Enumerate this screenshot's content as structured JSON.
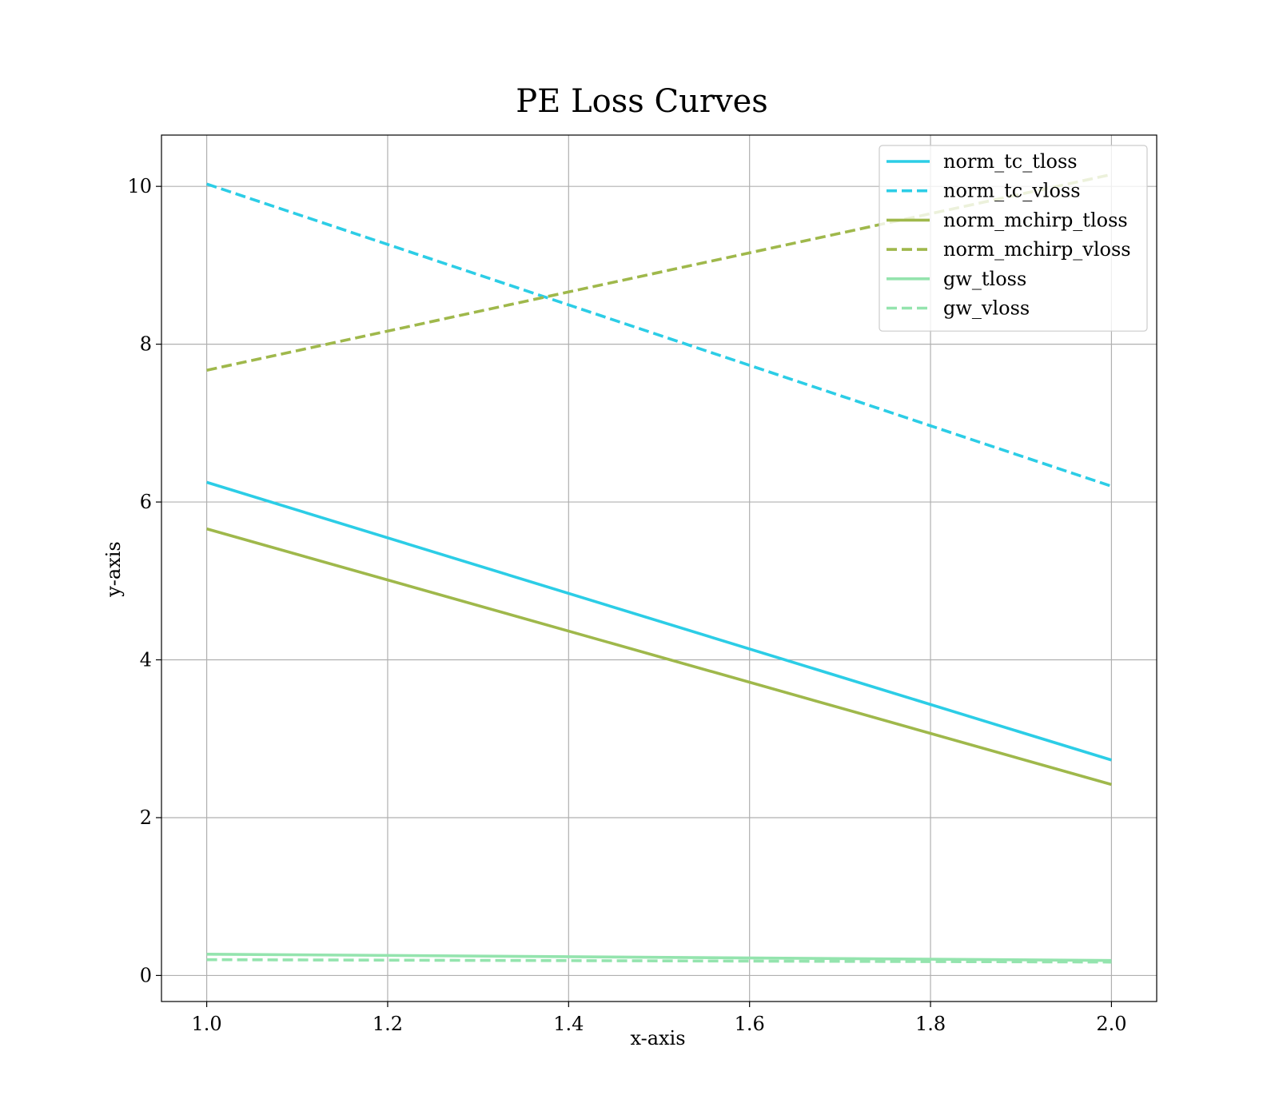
{
  "chart_data": {
    "type": "line",
    "title": "PE Loss Curves",
    "xlabel": "x-axis",
    "ylabel": "y-axis",
    "xlim": [
      0.95,
      2.05
    ],
    "ylim": [
      -0.33,
      10.65
    ],
    "xticks": [
      1.0,
      1.2,
      1.4,
      1.6,
      1.8,
      2.0
    ],
    "xtick_labels": [
      "1.0",
      "1.2",
      "1.4",
      "1.6",
      "1.8",
      "2.0"
    ],
    "yticks": [
      0,
      2,
      4,
      6,
      8,
      10
    ],
    "ytick_labels": [
      "0",
      "2",
      "4",
      "6",
      "8",
      "10"
    ],
    "grid": true,
    "legend_position": "top-right",
    "x": [
      1.0,
      2.0
    ],
    "series": [
      {
        "name": "norm_tc_tloss",
        "values": [
          6.25,
          2.73
        ],
        "color": "#2ccde6",
        "style": "solid"
      },
      {
        "name": "norm_tc_vloss",
        "values": [
          10.03,
          6.2
        ],
        "color": "#2ccde6",
        "style": "dashed"
      },
      {
        "name": "norm_mchirp_tloss",
        "values": [
          5.66,
          2.42
        ],
        "color": "#9fb84b",
        "style": "solid"
      },
      {
        "name": "norm_mchirp_vloss",
        "values": [
          7.67,
          10.15
        ],
        "color": "#9fb84b",
        "style": "dashed"
      },
      {
        "name": "gw_tloss",
        "values": [
          0.27,
          0.19
        ],
        "color": "#94e4ae",
        "style": "solid"
      },
      {
        "name": "gw_vloss",
        "values": [
          0.2,
          0.17
        ],
        "color": "#94e4ae",
        "style": "dashed"
      }
    ]
  }
}
